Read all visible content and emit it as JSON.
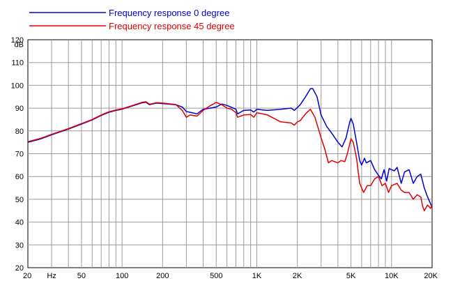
{
  "chart_data": {
    "type": "line",
    "title": "",
    "xlabel": "Hz",
    "ylabel": "dB",
    "x_scale": "log",
    "xlim": [
      20,
      20000
    ],
    "ylim": [
      20,
      120
    ],
    "grid": true,
    "legend_position": "top-left",
    "x_ticks": [
      {
        "value": 20,
        "label": "20"
      },
      {
        "value": 50,
        "label": "50"
      },
      {
        "value": 100,
        "label": "100"
      },
      {
        "value": 200,
        "label": "200"
      },
      {
        "value": 500,
        "label": "500"
      },
      {
        "value": 1000,
        "label": "1K"
      },
      {
        "value": 2000,
        "label": "2K"
      },
      {
        "value": 5000,
        "label": "5K"
      },
      {
        "value": 10000,
        "label": "10K"
      },
      {
        "value": 20000,
        "label": "20K"
      }
    ],
    "y_ticks": [
      20,
      30,
      40,
      50,
      60,
      70,
      80,
      90,
      100,
      110,
      120
    ],
    "series": [
      {
        "name": "Frequency response 0 degree",
        "color": "#0000cc",
        "points": [
          [
            20,
            75
          ],
          [
            25,
            76.5
          ],
          [
            30,
            78.3
          ],
          [
            40,
            80.8
          ],
          [
            50,
            83
          ],
          [
            60,
            84.8
          ],
          [
            70,
            86.8
          ],
          [
            80,
            88.2
          ],
          [
            90,
            89
          ],
          [
            100,
            89.5
          ],
          [
            120,
            91
          ],
          [
            140,
            92.3
          ],
          [
            150,
            92.6
          ],
          [
            160,
            91.5
          ],
          [
            180,
            92.2
          ],
          [
            200,
            92
          ],
          [
            250,
            91.5
          ],
          [
            280,
            90.5
          ],
          [
            300,
            88.5
          ],
          [
            330,
            88
          ],
          [
            360,
            87.5
          ],
          [
            400,
            89.5
          ],
          [
            450,
            90
          ],
          [
            500,
            90.5
          ],
          [
            550,
            91.8
          ],
          [
            600,
            91.2
          ],
          [
            700,
            89.5
          ],
          [
            720,
            87.5
          ],
          [
            800,
            89
          ],
          [
            900,
            89.2
          ],
          [
            950,
            88.3
          ],
          [
            1000,
            89.5
          ],
          [
            1200,
            89
          ],
          [
            1500,
            89.5
          ],
          [
            1800,
            90
          ],
          [
            1900,
            89
          ],
          [
            2100,
            91.5
          ],
          [
            2300,
            95
          ],
          [
            2500,
            98.5
          ],
          [
            2600,
            98.6
          ],
          [
            2800,
            95
          ],
          [
            3000,
            87
          ],
          [
            3300,
            82
          ],
          [
            3600,
            79
          ],
          [
            4000,
            75
          ],
          [
            4300,
            73
          ],
          [
            4600,
            77
          ],
          [
            4900,
            84
          ],
          [
            5000,
            85.5
          ],
          [
            5200,
            83
          ],
          [
            5500,
            75
          ],
          [
            5800,
            67
          ],
          [
            6000,
            65
          ],
          [
            6300,
            68
          ],
          [
            6500,
            66
          ],
          [
            7000,
            67
          ],
          [
            7500,
            63
          ],
          [
            8000,
            60.5
          ],
          [
            8400,
            59
          ],
          [
            8800,
            63
          ],
          [
            9200,
            58
          ],
          [
            9600,
            63.5
          ],
          [
            10000,
            63
          ],
          [
            10500,
            62.5
          ],
          [
            11000,
            64
          ],
          [
            11800,
            57
          ],
          [
            12500,
            62
          ],
          [
            13500,
            63
          ],
          [
            14500,
            57
          ],
          [
            15500,
            60
          ],
          [
            16500,
            61
          ],
          [
            17500,
            55
          ],
          [
            18500,
            51
          ],
          [
            19500,
            48
          ],
          [
            20000,
            46.5
          ]
        ]
      },
      {
        "name": "Frequency response 45 degree",
        "color": "#e00000",
        "points": [
          [
            20,
            75.3
          ],
          [
            25,
            76.8
          ],
          [
            30,
            78.5
          ],
          [
            40,
            81
          ],
          [
            50,
            83.2
          ],
          [
            60,
            85
          ],
          [
            70,
            87
          ],
          [
            80,
            88.4
          ],
          [
            90,
            89.2
          ],
          [
            100,
            89.7
          ],
          [
            120,
            91.2
          ],
          [
            140,
            92.5
          ],
          [
            150,
            92.8
          ],
          [
            160,
            91.7
          ],
          [
            180,
            92.4
          ],
          [
            200,
            92.2
          ],
          [
            250,
            91.6
          ],
          [
            280,
            89
          ],
          [
            300,
            86
          ],
          [
            320,
            87
          ],
          [
            360,
            86.5
          ],
          [
            400,
            89
          ],
          [
            450,
            91
          ],
          [
            500,
            92.5
          ],
          [
            550,
            91.5
          ],
          [
            600,
            90
          ],
          [
            650,
            89.5
          ],
          [
            700,
            88
          ],
          [
            720,
            86
          ],
          [
            800,
            87
          ],
          [
            900,
            87.2
          ],
          [
            950,
            86
          ],
          [
            1000,
            88
          ],
          [
            1200,
            87
          ],
          [
            1500,
            84
          ],
          [
            1800,
            83.5
          ],
          [
            1900,
            82.5
          ],
          [
            2000,
            84
          ],
          [
            2100,
            84.5
          ],
          [
            2300,
            87.5
          ],
          [
            2500,
            89.5
          ],
          [
            2700,
            86
          ],
          [
            3000,
            77
          ],
          [
            3200,
            72
          ],
          [
            3400,
            66
          ],
          [
            3600,
            67
          ],
          [
            4000,
            66
          ],
          [
            4200,
            67
          ],
          [
            4500,
            66.5
          ],
          [
            4700,
            70
          ],
          [
            5000,
            76.5
          ],
          [
            5200,
            75
          ],
          [
            5500,
            68
          ],
          [
            5800,
            57
          ],
          [
            6200,
            53
          ],
          [
            6600,
            56
          ],
          [
            7000,
            56
          ],
          [
            7500,
            59
          ],
          [
            8000,
            60
          ],
          [
            8500,
            56
          ],
          [
            9000,
            57
          ],
          [
            9500,
            53
          ],
          [
            10000,
            56
          ],
          [
            10500,
            56.5
          ],
          [
            11000,
            57
          ],
          [
            11800,
            54
          ],
          [
            12500,
            53
          ],
          [
            13500,
            53
          ],
          [
            14500,
            50
          ],
          [
            15500,
            52
          ],
          [
            16500,
            51
          ],
          [
            17000,
            47
          ],
          [
            17500,
            45
          ],
          [
            18500,
            47.5
          ],
          [
            19500,
            46
          ],
          [
            20000,
            47.5
          ]
        ]
      }
    ]
  }
}
